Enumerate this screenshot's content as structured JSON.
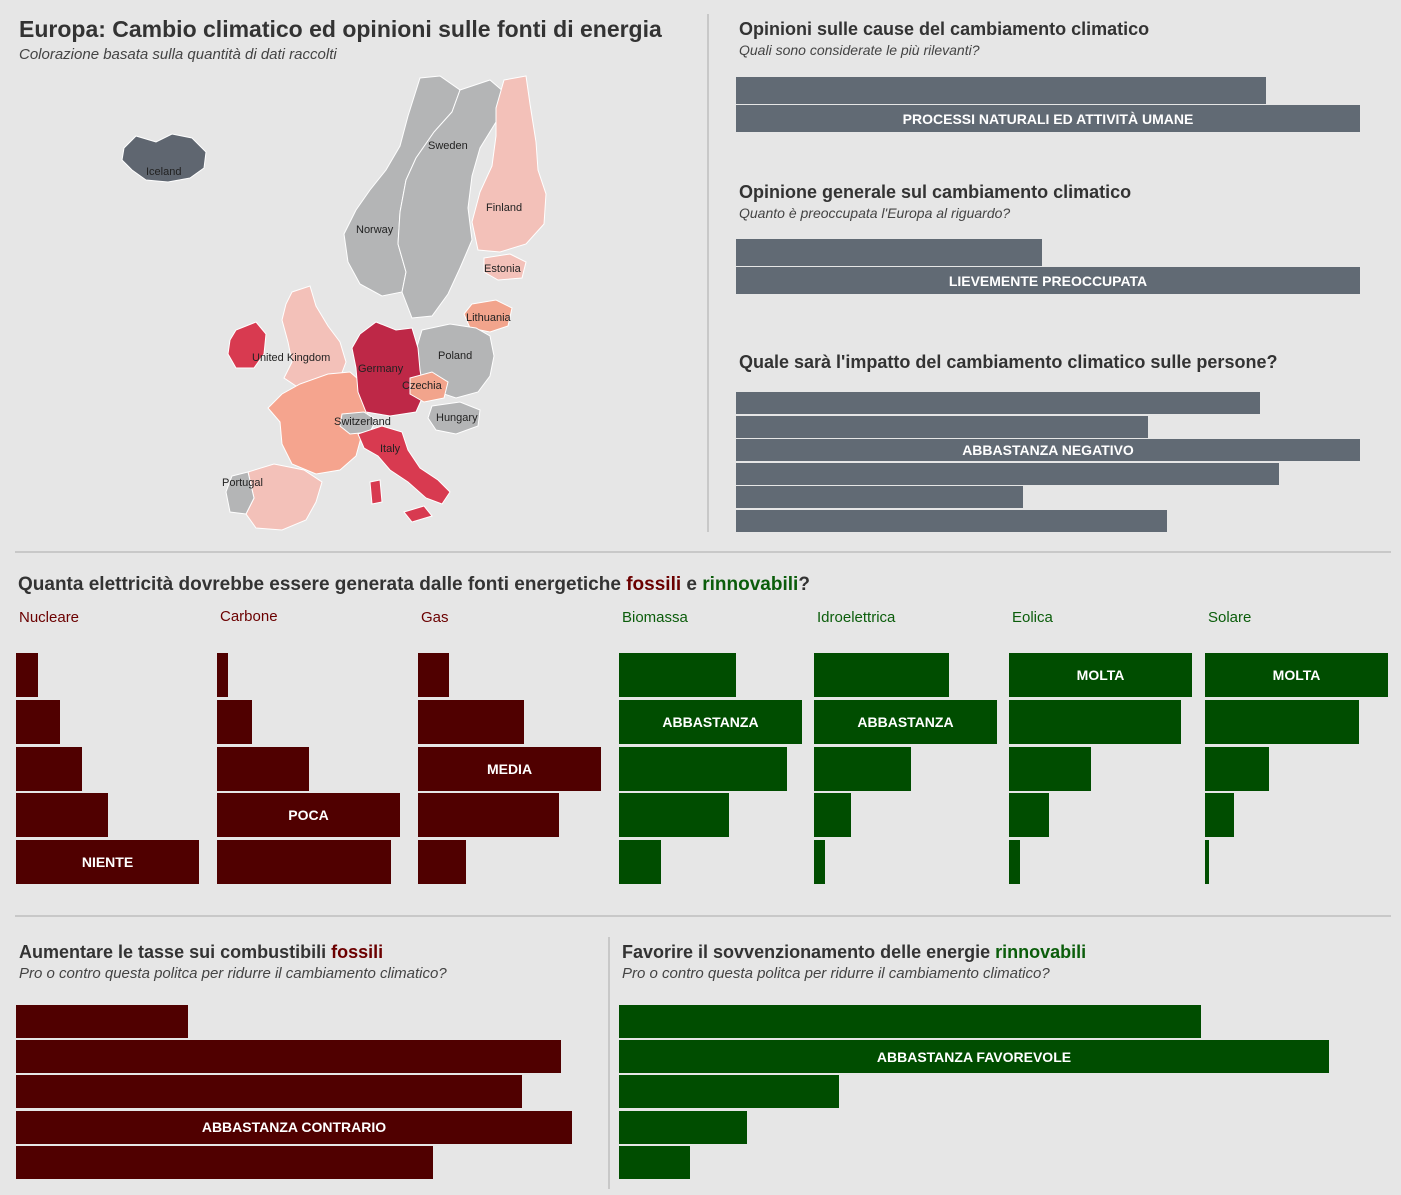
{
  "header": {
    "title": "Europa: Cambio climatico ed opinioni sulle fonti di energia",
    "subtitle": "Colorazione basata sulla quantità di dati raccolti"
  },
  "map": {
    "countries": [
      {
        "name": "Iceland",
        "color": "#5f6670"
      },
      {
        "name": "Sweden",
        "color": "#b4b5b6"
      },
      {
        "name": "Norway",
        "color": "#b4b5b6"
      },
      {
        "name": "Finland",
        "color": "#f3c1b9"
      },
      {
        "name": "Estonia",
        "color": "#f3c1b9"
      },
      {
        "name": "Lithuania",
        "color": "#f2a48c"
      },
      {
        "name": "Poland",
        "color": "#b4b5b6"
      },
      {
        "name": "United Kingdom",
        "color": "#f3c1b9"
      },
      {
        "name": "Germany",
        "color": "#be2847"
      },
      {
        "name": "Czechia",
        "color": "#f2a48c"
      },
      {
        "name": "Switzerland",
        "color": "#b4b5b6"
      },
      {
        "name": "Hungary",
        "color": "#b4b5b6"
      },
      {
        "name": "Italy",
        "color": "#d83a50"
      },
      {
        "name": "Portugal",
        "color": "#b4b5b6"
      },
      {
        "name": "France",
        "color": "#f5a48e"
      },
      {
        "name": "Spain",
        "color": "#f3c1b9"
      },
      {
        "name": "Ireland",
        "color": "#d83a50"
      }
    ]
  },
  "panels": {
    "causes": {
      "title": "Opinioni sulle cause del cambiamento climatico",
      "subtitle": "Quali sono considerate le più rilevanti?"
    },
    "general": {
      "title": "Opinione generale sul cambiamento climatico",
      "subtitle": "Quanto è preoccupata l'Europa al riguardo?"
    },
    "impact": {
      "title": "Quale sarà l'impatto del cambiamento climatico sulle persone?"
    },
    "electricity": {
      "title_pre": "Quanta elettricità dovrebbe essere generata dalle fonti energetiche ",
      "title_fossil": "fossili",
      "title_mid": " e ",
      "title_renew": "rinnovabili",
      "title_end": "?"
    },
    "tax": {
      "title_pre": "Aumentare le tasse sui combustibili ",
      "title_word": "fossili",
      "subtitle": "Pro o contro questa politca per ridurre il cambiamento climatico?"
    },
    "subsidy": {
      "title_pre": "Favorire il sovvenzionamento delle energie ",
      "title_word": "rinnovabili",
      "subtitle": "Pro o contro questa politca per ridurre il cambiamento climatico?"
    }
  },
  "colors": {
    "gray": "#616a74",
    "fossil": "#500000",
    "renewable": "#004d00",
    "fossil_text": "#6b0000",
    "renew_text": "#0b5d0b"
  },
  "chart_data": [
    {
      "type": "bar",
      "id": "causes",
      "orientation": "horizontal",
      "values": [
        85,
        100
      ],
      "labels": [
        "",
        "PROCESSI NATURALI ED ATTIVITÀ UMANE"
      ],
      "xlim": [
        0,
        100
      ]
    },
    {
      "type": "bar",
      "id": "general",
      "orientation": "horizontal",
      "values": [
        49,
        100
      ],
      "labels": [
        "",
        "LIEVEMENTE PREOCCUPATA"
      ],
      "xlim": [
        0,
        100
      ]
    },
    {
      "type": "bar",
      "id": "impact",
      "orientation": "horizontal",
      "values": [
        84,
        66,
        100,
        87,
        46,
        69
      ],
      "labels": [
        "",
        "",
        "ABBASTANZA NEGATIVO",
        "",
        "",
        ""
      ],
      "xlim": [
        0,
        100
      ]
    },
    {
      "type": "bar",
      "id": "electricity",
      "orientation": "horizontal",
      "series": [
        {
          "name": "Nucleare",
          "group": "fossil",
          "values": [
            12,
            24,
            36,
            50,
            100
          ],
          "labels": [
            "",
            "",
            "",
            "",
            "NIENTE"
          ]
        },
        {
          "name": "Carbone",
          "group": "fossil",
          "values": [
            6,
            19,
            50,
            100,
            95
          ],
          "labels": [
            "",
            "",
            "",
            "POCA",
            ""
          ]
        },
        {
          "name": "Gas",
          "group": "fossil",
          "values": [
            17,
            58,
            100,
            77,
            26
          ],
          "labels": [
            "",
            "",
            "MEDIA",
            "",
            ""
          ]
        },
        {
          "name": "Biomassa",
          "group": "renewable",
          "values": [
            64,
            100,
            92,
            60,
            23
          ],
          "labels": [
            "",
            "ABBASTANZA",
            "",
            "",
            ""
          ]
        },
        {
          "name": "Idroelettrica",
          "group": "renewable",
          "values": [
            74,
            100,
            53,
            20,
            6
          ],
          "labels": [
            "",
            "ABBASTANZA",
            "",
            "",
            ""
          ]
        },
        {
          "name": "Eolica",
          "group": "renewable",
          "values": [
            100,
            94,
            45,
            22,
            6
          ],
          "labels": [
            "MOLTA",
            "",
            "",
            "",
            ""
          ]
        },
        {
          "name": "Solare",
          "group": "renewable",
          "values": [
            100,
            84,
            35,
            16,
            2
          ],
          "labels": [
            "MOLTA",
            "",
            "",
            "",
            ""
          ]
        }
      ]
    },
    {
      "type": "bar",
      "id": "tax",
      "orientation": "horizontal",
      "values": [
        31,
        98,
        91,
        100,
        75
      ],
      "labels": [
        "",
        "",
        "",
        "ABBASTANZA CONTRARIO",
        ""
      ],
      "xlim": [
        0,
        100
      ]
    },
    {
      "type": "bar",
      "id": "subsidy",
      "orientation": "horizontal",
      "values": [
        82,
        100,
        31,
        18,
        10
      ],
      "labels": [
        "",
        "ABBASTANZA FAVOREVOLE",
        "",
        "",
        ""
      ],
      "xlim": [
        0,
        100
      ]
    }
  ]
}
